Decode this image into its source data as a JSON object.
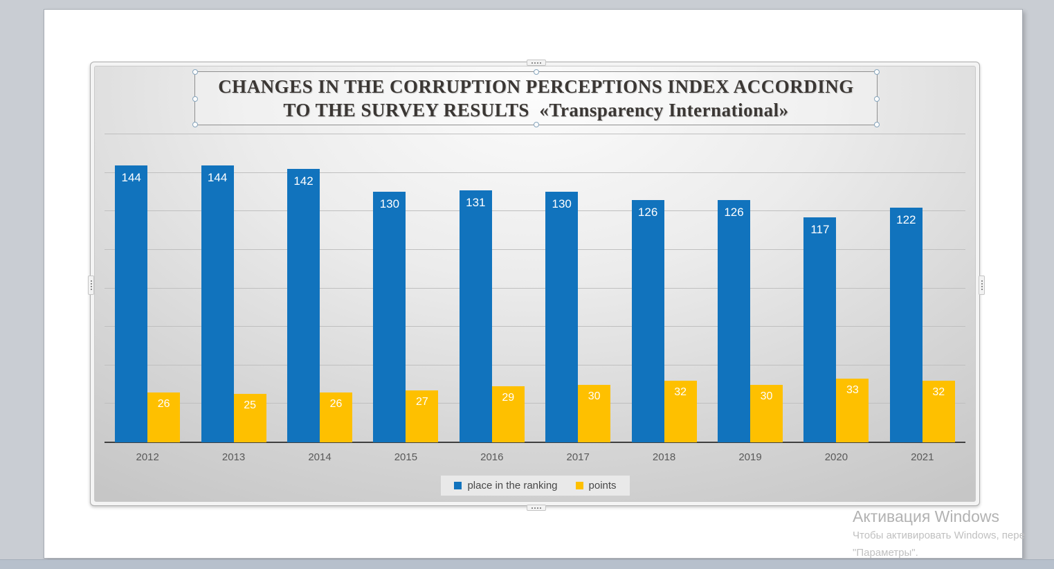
{
  "chart": {
    "title_lines": [
      "CHANGES IN THE CORRUPTION PERCEPTIONS INDEX ACCORDING",
      "TO THE SURVEY RESULTS  «Transparency International»"
    ]
  },
  "chart_data": {
    "type": "bar",
    "title": "CHANGES IN THE CORRUPTION PERCEPTIONS INDEX ACCORDING TO THE SURVEY RESULTS «Transparency International»",
    "categories": [
      "2012",
      "2013",
      "2014",
      "2015",
      "2016",
      "2017",
      "2018",
      "2019",
      "2020",
      "2021"
    ],
    "series": [
      {
        "name": "place in the ranking",
        "color": "#1173bd",
        "values": [
          144,
          144,
          142,
          130,
          131,
          130,
          126,
          126,
          117,
          122
        ]
      },
      {
        "name": "points",
        "color": "#fec000",
        "values": [
          26,
          25,
          26,
          27,
          29,
          30,
          32,
          30,
          33,
          32
        ]
      }
    ],
    "xlabel": "",
    "ylabel": "",
    "ylim": [
      0,
      160
    ],
    "grid_step": 20,
    "grid": true,
    "data_labels": true,
    "legend_position": "bottom"
  },
  "colors": {
    "series_blue": "#1173bd",
    "series_yellow": "#fec000",
    "axis_text": "#595959",
    "workspace_background": "#c9cdd3"
  },
  "watermark": {
    "title": "Активация Windows",
    "body_line1": "Чтобы активировать Windows, пере",
    "body_line2": "\"Параметры\"."
  }
}
